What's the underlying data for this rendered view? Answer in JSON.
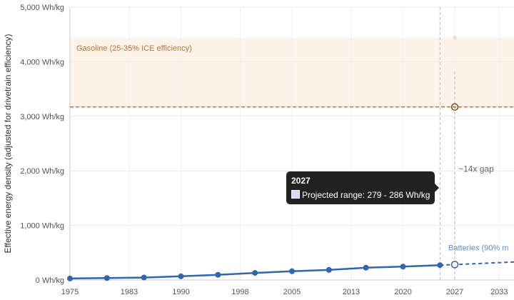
{
  "chart_data": {
    "type": "line",
    "ylabel": "Effective energy density (adjusted for drivetrain efficiency)",
    "xlabel": "",
    "xlim": [
      1975,
      2035
    ],
    "ylim": [
      0,
      5000
    ],
    "x_ticks": [
      1975,
      1983,
      1990,
      1998,
      2005,
      2013,
      2020,
      2027,
      2033
    ],
    "y_ticks": [
      {
        "value": 0,
        "label": "0 Wh/kg"
      },
      {
        "value": 1000,
        "label": "1,000 Wh/kg"
      },
      {
        "value": 2000,
        "label": "2,000 Wh/kg"
      },
      {
        "value": 3000,
        "label": "3,000 Wh/kg"
      },
      {
        "value": 4000,
        "label": "4,000 Wh/kg"
      },
      {
        "value": 5000,
        "label": "5,000 Wh/kg"
      }
    ],
    "grid": true,
    "series": [
      {
        "name": "Batteries (90% m",
        "color": "#2f66ad",
        "label_color": "#5b8fc9",
        "historical": [
          {
            "x": 1975,
            "y": 27
          },
          {
            "x": 1980,
            "y": 36
          },
          {
            "x": 1985,
            "y": 45
          },
          {
            "x": 1990,
            "y": 68
          },
          {
            "x": 1995,
            "y": 95
          },
          {
            "x": 2000,
            "y": 130
          },
          {
            "x": 2005,
            "y": 160
          },
          {
            "x": 2010,
            "y": 185
          },
          {
            "x": 2015,
            "y": 225
          },
          {
            "x": 2020,
            "y": 245
          },
          {
            "x": 2025,
            "y": 272
          }
        ],
        "projected": [
          {
            "x": 2025,
            "y": 272
          },
          {
            "x": 2027,
            "y": 283
          },
          {
            "x": 2035,
            "y": 330
          }
        ],
        "highlight": {
          "x": 2027,
          "y": 283
        }
      }
    ],
    "gasoline_band": {
      "label": "Gasoline (25-35% ICE efficiency)",
      "y_low": 3170,
      "y_high": 4440,
      "reference_y": 3170,
      "highlight": {
        "x": 2027,
        "y": 3170
      },
      "fill_color": "#fdf3e8",
      "line_color": "#8a4a1a",
      "label_color": "#b07a3a"
    },
    "current_year_marker": 2025,
    "gap_annotation": {
      "x": 2027,
      "text": "~14x gap"
    },
    "tooltip": {
      "title": "2027",
      "row": "Projected range: 279 - 286 Wh/kg"
    }
  }
}
